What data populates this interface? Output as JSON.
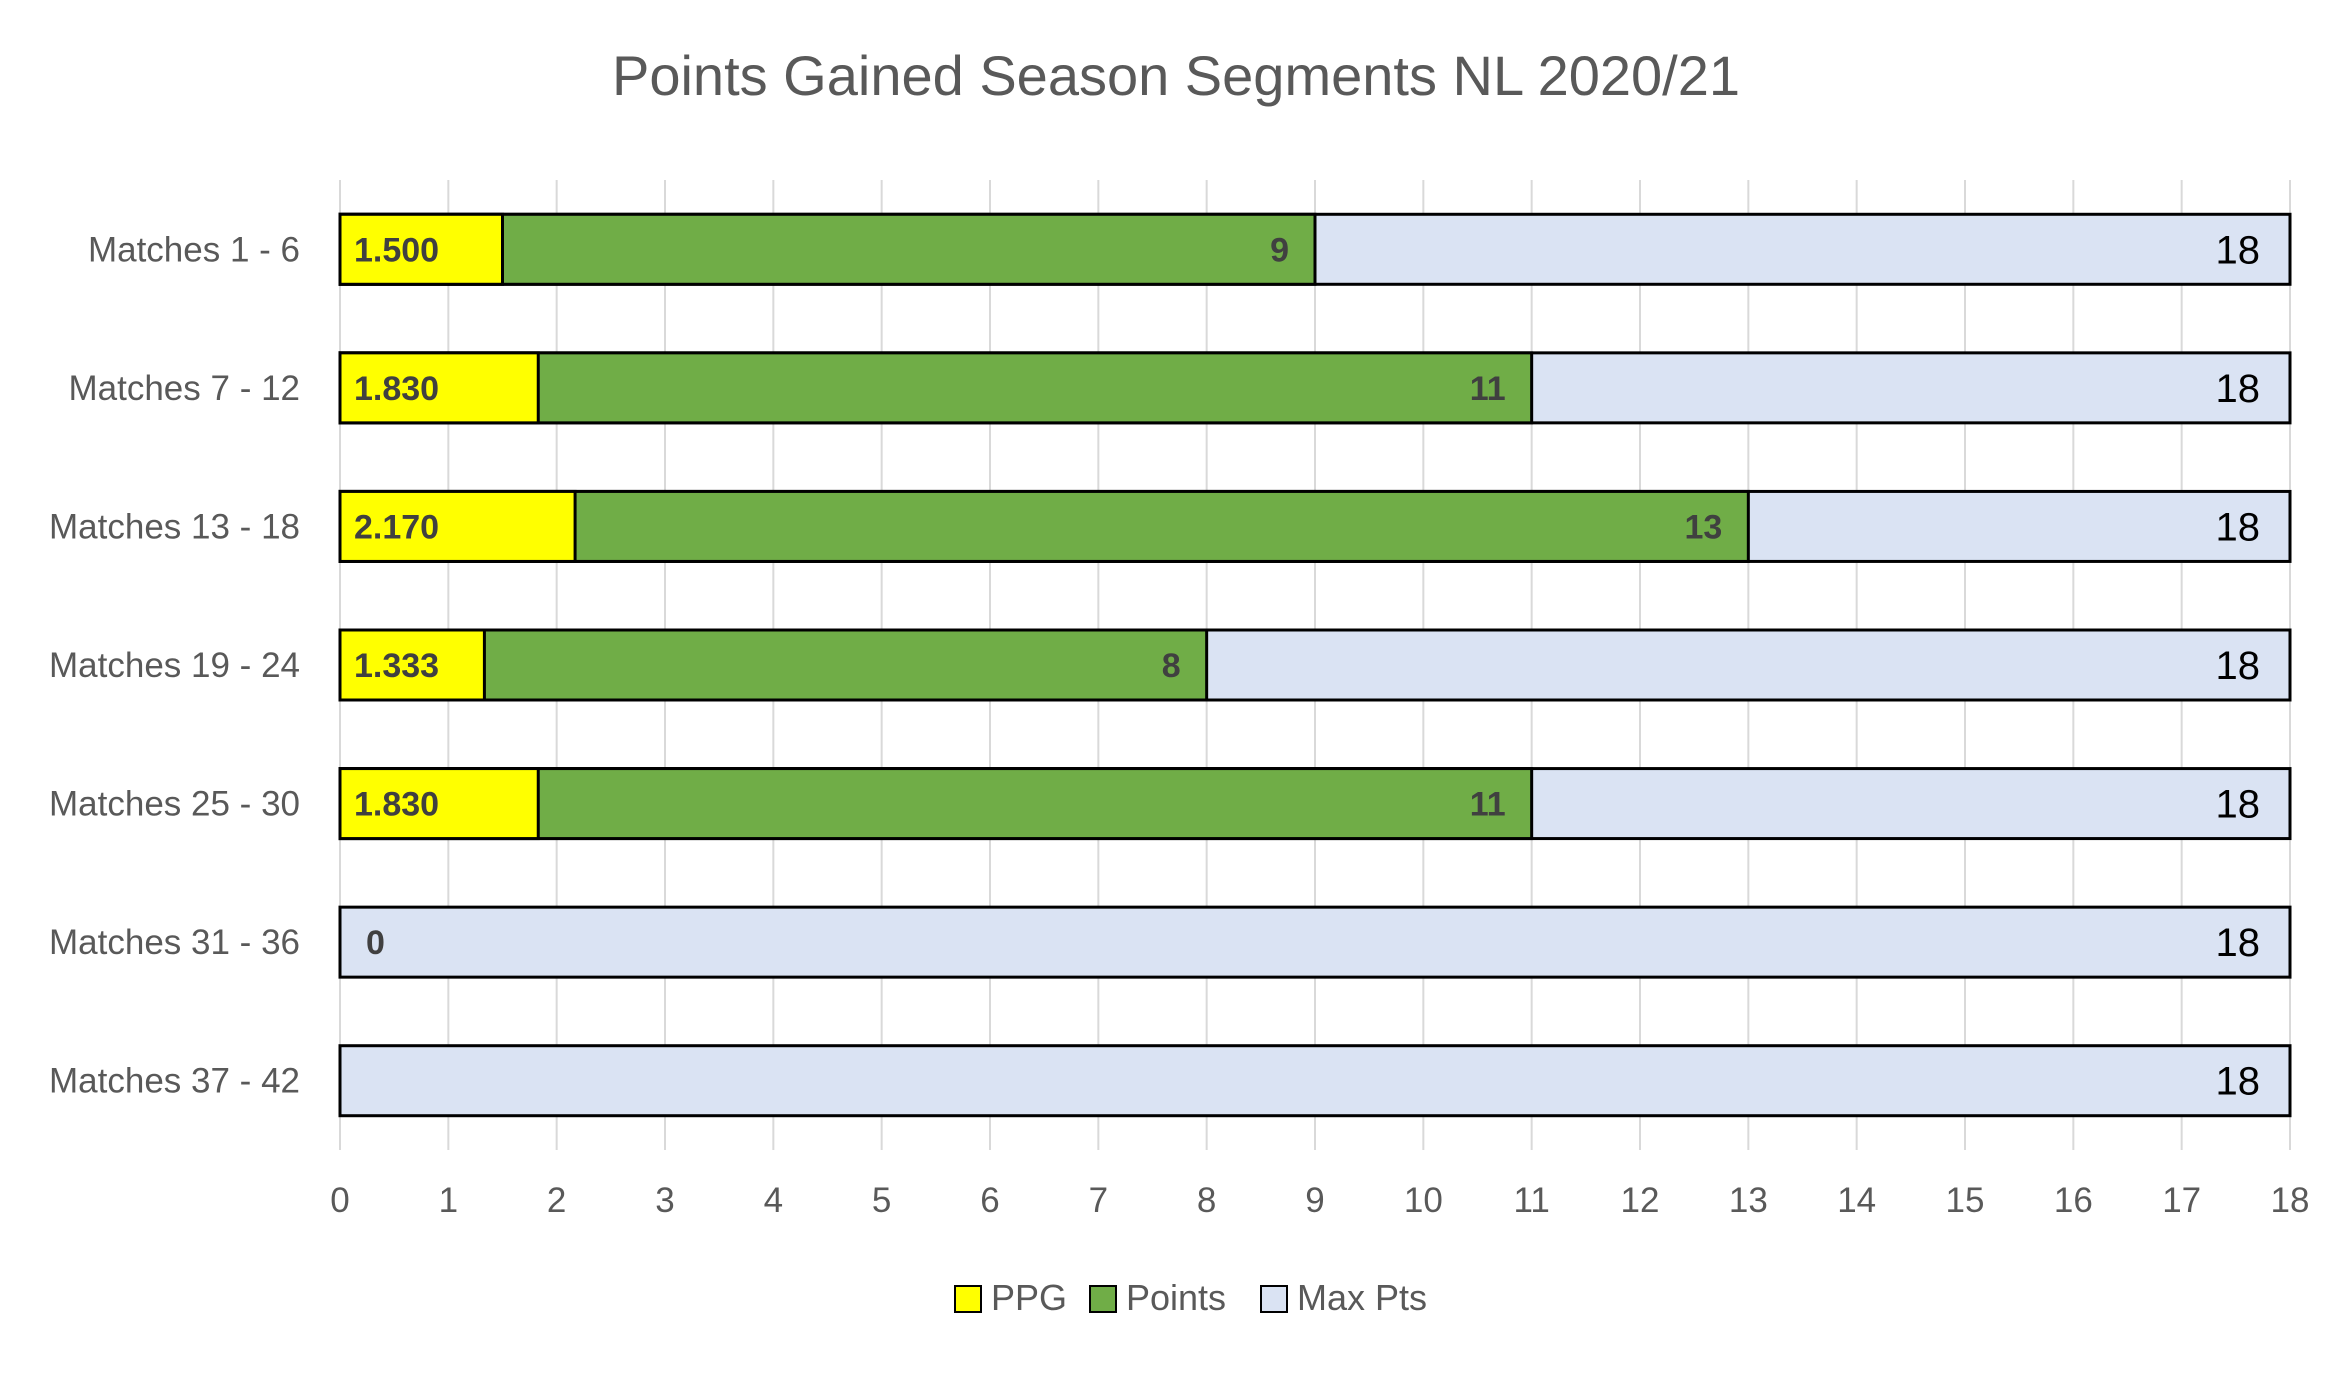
{
  "chart_data": {
    "type": "bar",
    "orientation": "horizontal",
    "title": "Points Gained Season Segments NL 2020/21",
    "categories": [
      "Matches 1 - 6",
      "Matches 7 - 12",
      "Matches 13 - 18",
      "Matches 19 - 24",
      "Matches 25 - 30",
      "Matches 31 - 36",
      "Matches 37 - 42"
    ],
    "series": [
      {
        "name": "Max Pts",
        "color": "#dae3f3",
        "values": [
          18,
          18,
          18,
          18,
          18,
          18,
          18
        ],
        "labels": [
          "18",
          "18",
          "18",
          "18",
          "18",
          "18",
          "18"
        ]
      },
      {
        "name": "Points",
        "color": "#70ad47",
        "values": [
          9,
          11,
          13,
          8,
          11,
          0,
          null
        ],
        "labels": [
          "9",
          "11",
          "13",
          "8",
          "11",
          "0",
          ""
        ]
      },
      {
        "name": "PPG",
        "color": "#ffff00",
        "values": [
          1.5,
          1.83,
          2.17,
          1.333,
          1.83,
          null,
          null
        ],
        "labels": [
          "1.500",
          "1.830",
          "2.170",
          "1.333",
          "1.830",
          "",
          ""
        ]
      }
    ],
    "xlim": [
      0,
      18
    ],
    "xticks": [
      "0",
      "1",
      "2",
      "3",
      "4",
      "5",
      "6",
      "7",
      "8",
      "9",
      "10",
      "11",
      "12",
      "13",
      "14",
      "15",
      "16",
      "17",
      "18"
    ],
    "grid": true,
    "legend": {
      "position": "bottom",
      "entries": [
        "PPG",
        "Points",
        "Max Pts"
      ]
    }
  }
}
